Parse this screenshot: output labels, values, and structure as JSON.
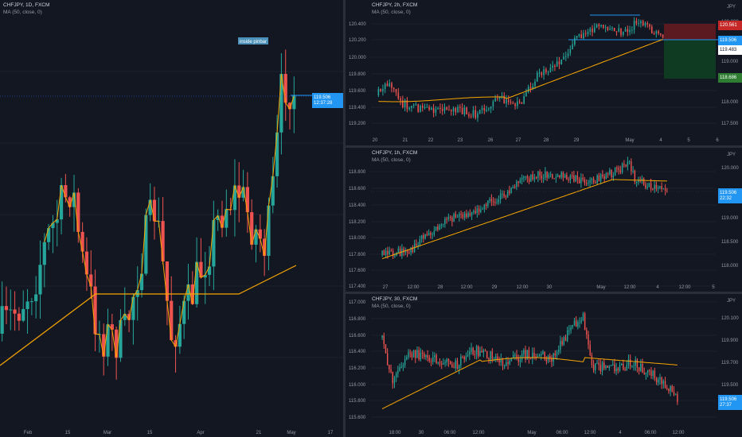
{
  "colors": {
    "background": "#131722",
    "bull": "#26a69a",
    "bear": "#ef5350",
    "ma": "#f7a600",
    "axis_text": "#9598a1",
    "grid": "#1e222d",
    "price_tag": "#2196f3",
    "stop_zone": "#5b1a1f",
    "target_zone": "#0e3b22"
  },
  "panes": {
    "daily": {
      "title": "CHFJPY, 1D, FXCM",
      "ma_label": "MA (50, close, 0)",
      "annotation": "inside pinbar",
      "price_tag": [
        "119.506",
        "12:37:28"
      ],
      "x_labels": [
        "Feb",
        "15",
        "Mar",
        "15",
        "Apr",
        "21",
        "May",
        "17"
      ]
    },
    "h2": {
      "title": "CHFJPY, 2h, FXCM",
      "ma_label": "MA (50, close, 0)",
      "currency": "JPY",
      "left_axis": [
        "120.400",
        "120.200",
        "120.000",
        "119.800",
        "119.600",
        "119.400",
        "119.200"
      ],
      "right_axis": [
        "120.000",
        "119.500",
        "119.000",
        "118.500",
        "118.000",
        "117.500"
      ],
      "right_tags": [
        "120.561",
        "119.506",
        "119.483",
        "118.686"
      ],
      "x_labels": [
        "20",
        "21",
        "22",
        "23",
        "26",
        "27",
        "28",
        "29",
        "May",
        "4",
        "5",
        "6"
      ]
    },
    "h1": {
      "title": "CHFJPY, 1h, FXCM",
      "ma_label": "MA (50, close, 0)",
      "currency": "JPY",
      "left_axis": [
        "118.800",
        "118.600",
        "118.400",
        "118.200",
        "118.000",
        "117.800",
        "117.600",
        "117.400",
        "117.200"
      ],
      "right_axis": [
        "120.000",
        "119.500",
        "119.000",
        "118.500",
        "118.000"
      ],
      "right_tags": [
        "119.506",
        "22:32"
      ],
      "x_labels": [
        "27",
        "12:00",
        "28",
        "12:00",
        "29",
        "12:00",
        "30",
        "May",
        "12:00",
        "4",
        "12:00",
        "5"
      ]
    },
    "m30": {
      "title": "CHFJPY, 30, FXCM",
      "ma_label": "MA (50, close, 0)",
      "currency": "JPY",
      "left_axis": [
        "117.000",
        "116.800",
        "116.600",
        "116.400",
        "116.200",
        "116.000",
        "115.800",
        "115.600"
      ],
      "right_axis": [
        "120.100",
        "119.900",
        "119.700",
        "119.500",
        "119.400"
      ],
      "right_tags": [
        "119.506",
        "27:37"
      ],
      "x_labels": [
        "18:00",
        "30",
        "06:00",
        "12:00",
        "May",
        "06:00",
        "12:00",
        "4",
        "06:00",
        "12:00"
      ]
    }
  }
}
